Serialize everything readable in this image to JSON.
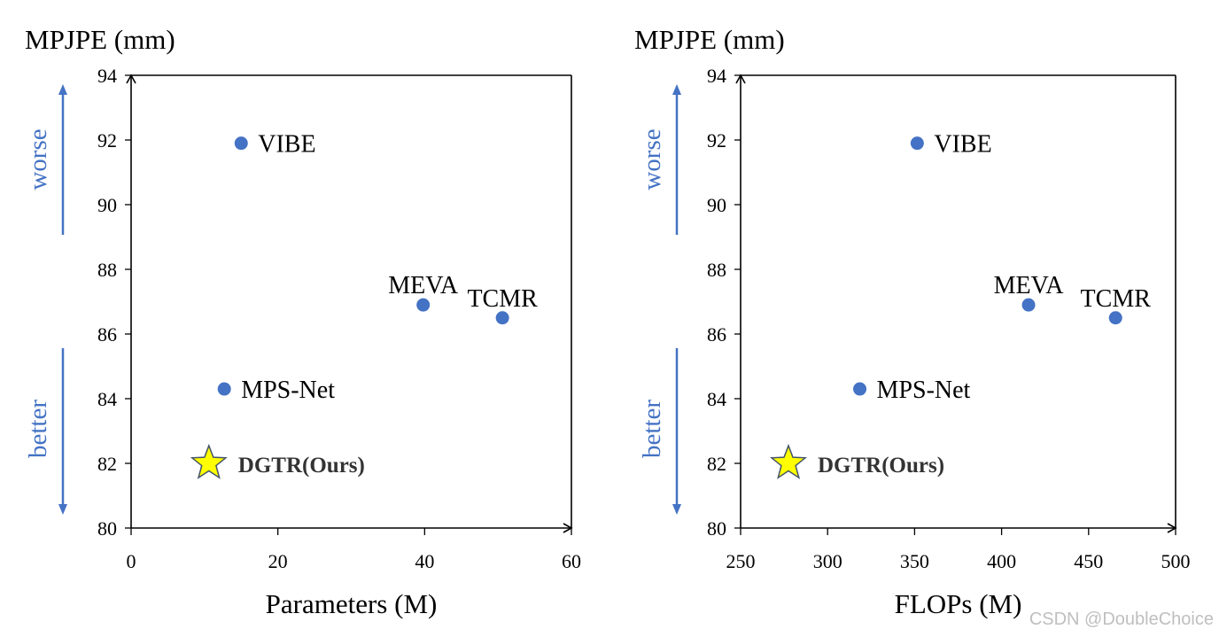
{
  "chart_data": [
    {
      "type": "scatter",
      "xlabel": "Parameters (M)",
      "ylabel": "MPJPE (mm)",
      "xlim": [
        0,
        60
      ],
      "ylim": [
        80,
        94
      ],
      "xticks": [
        0,
        20,
        40,
        60
      ],
      "yticks": [
        80,
        82,
        84,
        86,
        88,
        90,
        92,
        94
      ],
      "direction_labels": {
        "up": "worse",
        "down": "better"
      },
      "points": [
        {
          "label": "VIBE",
          "x": 15.0,
          "y": 91.9,
          "marker": "circle",
          "color": "#4472c4",
          "label_pos": "right"
        },
        {
          "label": "MEVA",
          "x": 39.8,
          "y": 86.9,
          "marker": "circle",
          "color": "#4472c4",
          "label_pos": "above"
        },
        {
          "label": "TCMR",
          "x": 50.6,
          "y": 86.5,
          "marker": "circle",
          "color": "#4472c4",
          "label_pos": "above"
        },
        {
          "label": "MPS-Net",
          "x": 12.7,
          "y": 84.3,
          "marker": "circle",
          "color": "#4472c4",
          "label_pos": "right"
        },
        {
          "label": "DGTR(Ours)",
          "x": 10.6,
          "y": 82.0,
          "marker": "star",
          "color": "#ffff00",
          "label_pos": "right",
          "bold": true
        }
      ]
    },
    {
      "type": "scatter",
      "xlabel": "FLOPs (M)",
      "ylabel": "MPJPE (mm)",
      "xlim": [
        250,
        500
      ],
      "ylim": [
        80,
        94
      ],
      "xticks": [
        250,
        300,
        350,
        400,
        450,
        500
      ],
      "yticks": [
        80,
        82,
        84,
        86,
        88,
        90,
        92,
        94
      ],
      "direction_labels": {
        "up": "worse",
        "down": "better"
      },
      "points": [
        {
          "label": "VIBE",
          "x": 351.5,
          "y": 91.9,
          "marker": "circle",
          "color": "#4472c4",
          "label_pos": "right"
        },
        {
          "label": "MEVA",
          "x": 415.5,
          "y": 86.9,
          "marker": "circle",
          "color": "#4472c4",
          "label_pos": "above"
        },
        {
          "label": "TCMR",
          "x": 465.5,
          "y": 86.5,
          "marker": "circle",
          "color": "#4472c4",
          "label_pos": "above"
        },
        {
          "label": "MPS-Net",
          "x": 318.5,
          "y": 84.3,
          "marker": "circle",
          "color": "#4472c4",
          "label_pos": "right"
        },
        {
          "label": "DGTR(Ours)",
          "x": 277.5,
          "y": 82.0,
          "marker": "star",
          "color": "#ffff00",
          "label_pos": "right",
          "bold": true
        }
      ]
    }
  ],
  "watermark": "CSDN @DoubleChoice"
}
